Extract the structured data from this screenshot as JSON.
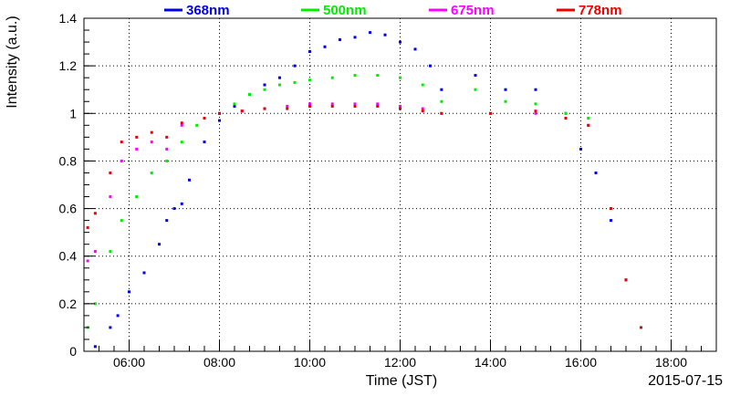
{
  "chart_data": {
    "type": "scatter",
    "title": "",
    "xlabel": "Time (JST)",
    "ylabel": "Intensity (a.u.)",
    "date": "2015-07-15",
    "x_unit": "hours JST",
    "xlim": [
      "05:00",
      "19:00"
    ],
    "ylim": [
      0,
      1.4
    ],
    "x_ticks": [
      "06:00",
      "08:00",
      "10:00",
      "12:00",
      "14:00",
      "16:00",
      "18:00"
    ],
    "y_ticks": [
      "0",
      "0.2",
      "0.4",
      "0.6",
      "0.8",
      "1",
      "1.2",
      "1.4"
    ],
    "grid": true,
    "legend_position": "top",
    "series": [
      {
        "name": "368nm",
        "color": "#0000ee",
        "points": [
          [
            "05:15",
            0.02
          ],
          [
            "05:35",
            0.1
          ],
          [
            "05:45",
            0.15
          ],
          [
            "06:00",
            0.25
          ],
          [
            "06:20",
            0.33
          ],
          [
            "06:40",
            0.45
          ],
          [
            "06:50",
            0.55
          ],
          [
            "07:00",
            0.6
          ],
          [
            "07:10",
            0.62
          ],
          [
            "07:20",
            0.72
          ],
          [
            "07:40",
            0.88
          ],
          [
            "08:00",
            0.97
          ],
          [
            "08:20",
            1.03
          ],
          [
            "08:40",
            1.08
          ],
          [
            "09:00",
            1.12
          ],
          [
            "09:20",
            1.15
          ],
          [
            "09:40",
            1.2
          ],
          [
            "10:00",
            1.26
          ],
          [
            "10:20",
            1.28
          ],
          [
            "10:40",
            1.31
          ],
          [
            "11:00",
            1.32
          ],
          [
            "11:20",
            1.34
          ],
          [
            "11:40",
            1.33
          ],
          [
            "12:00",
            1.3
          ],
          [
            "12:20",
            1.27
          ],
          [
            "12:40",
            1.2
          ],
          [
            "12:55",
            1.1
          ],
          [
            "13:40",
            1.16
          ],
          [
            "14:20",
            1.1
          ],
          [
            "15:00",
            1.1
          ],
          [
            "15:40",
            1.0
          ],
          [
            "16:00",
            0.85
          ],
          [
            "16:20",
            0.75
          ],
          [
            "16:40",
            0.55
          ],
          [
            "17:00",
            0.3
          ]
        ]
      },
      {
        "name": "500nm",
        "color": "#00ee00",
        "points": [
          [
            "05:05",
            0.1
          ],
          [
            "05:15",
            0.2
          ],
          [
            "05:35",
            0.42
          ],
          [
            "05:50",
            0.55
          ],
          [
            "06:10",
            0.65
          ],
          [
            "06:30",
            0.75
          ],
          [
            "06:50",
            0.8
          ],
          [
            "07:10",
            0.88
          ],
          [
            "07:30",
            0.95
          ],
          [
            "08:00",
            1.0
          ],
          [
            "08:20",
            1.04
          ],
          [
            "08:40",
            1.08
          ],
          [
            "09:00",
            1.1
          ],
          [
            "09:20",
            1.12
          ],
          [
            "09:40",
            1.13
          ],
          [
            "10:00",
            1.14
          ],
          [
            "10:30",
            1.15
          ],
          [
            "11:00",
            1.16
          ],
          [
            "11:30",
            1.16
          ],
          [
            "12:00",
            1.15
          ],
          [
            "12:30",
            1.12
          ],
          [
            "12:55",
            1.05
          ],
          [
            "13:40",
            1.1
          ],
          [
            "14:20",
            1.05
          ],
          [
            "15:00",
            1.04
          ],
          [
            "15:40",
            1.0
          ],
          [
            "16:10",
            0.98
          ],
          [
            "16:40",
            0.6
          ],
          [
            "17:00",
            0.3
          ]
        ]
      },
      {
        "name": "675nm",
        "color": "#ff00ff",
        "points": [
          [
            "05:05",
            0.38
          ],
          [
            "05:15",
            0.42
          ],
          [
            "05:35",
            0.65
          ],
          [
            "05:50",
            0.8
          ],
          [
            "06:10",
            0.85
          ],
          [
            "06:30",
            0.88
          ],
          [
            "06:50",
            0.85
          ],
          [
            "07:10",
            0.95
          ],
          [
            "07:40",
            0.98
          ],
          [
            "08:00",
            1.0
          ],
          [
            "08:30",
            1.01
          ],
          [
            "09:00",
            1.02
          ],
          [
            "09:30",
            1.03
          ],
          [
            "10:00",
            1.04
          ],
          [
            "10:30",
            1.04
          ],
          [
            "11:00",
            1.04
          ],
          [
            "11:30",
            1.04
          ],
          [
            "12:00",
            1.03
          ],
          [
            "12:30",
            1.02
          ],
          [
            "12:55",
            1.0
          ],
          [
            "14:00",
            1.0
          ],
          [
            "15:00",
            1.0
          ],
          [
            "15:40",
            0.98
          ],
          [
            "16:10",
            0.95
          ],
          [
            "16:40",
            0.6
          ],
          [
            "17:00",
            0.3
          ]
        ]
      },
      {
        "name": "778nm",
        "color": "#ee0000",
        "points": [
          [
            "05:05",
            0.52
          ],
          [
            "05:15",
            0.58
          ],
          [
            "05:35",
            0.75
          ],
          [
            "05:50",
            0.88
          ],
          [
            "06:10",
            0.9
          ],
          [
            "06:30",
            0.92
          ],
          [
            "06:50",
            0.9
          ],
          [
            "07:10",
            0.96
          ],
          [
            "07:40",
            0.98
          ],
          [
            "08:00",
            1.0
          ],
          [
            "08:30",
            1.01
          ],
          [
            "09:00",
            1.02
          ],
          [
            "09:30",
            1.02
          ],
          [
            "10:00",
            1.03
          ],
          [
            "10:30",
            1.03
          ],
          [
            "11:00",
            1.03
          ],
          [
            "11:30",
            1.03
          ],
          [
            "12:00",
            1.02
          ],
          [
            "12:30",
            1.01
          ],
          [
            "12:55",
            1.0
          ],
          [
            "14:00",
            1.0
          ],
          [
            "15:00",
            1.01
          ],
          [
            "15:40",
            0.98
          ],
          [
            "16:10",
            0.95
          ],
          [
            "16:40",
            0.6
          ],
          [
            "17:00",
            0.3
          ],
          [
            "17:20",
            0.1
          ]
        ]
      }
    ]
  }
}
